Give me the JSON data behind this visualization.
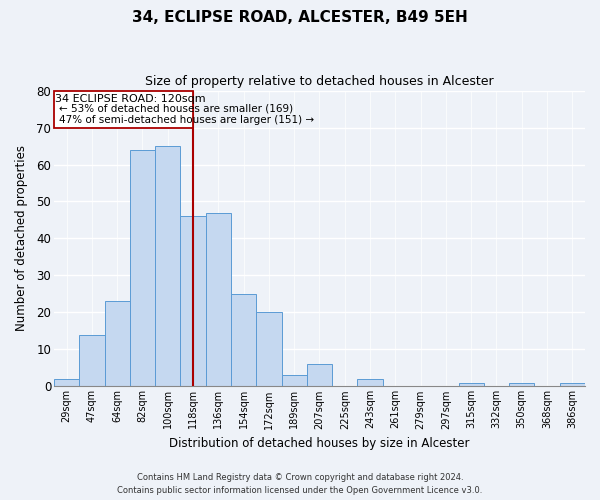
{
  "title": "34, ECLIPSE ROAD, ALCESTER, B49 5EH",
  "subtitle": "Size of property relative to detached houses in Alcester",
  "xlabel": "Distribution of detached houses by size in Alcester",
  "ylabel": "Number of detached properties",
  "bins": [
    "29sqm",
    "47sqm",
    "64sqm",
    "82sqm",
    "100sqm",
    "118sqm",
    "136sqm",
    "154sqm",
    "172sqm",
    "189sqm",
    "207sqm",
    "225sqm",
    "243sqm",
    "261sqm",
    "279sqm",
    "297sqm",
    "315sqm",
    "332sqm",
    "350sqm",
    "368sqm",
    "386sqm"
  ],
  "values": [
    2,
    14,
    23,
    64,
    65,
    46,
    47,
    25,
    20,
    3,
    6,
    0,
    2,
    0,
    0,
    0,
    1,
    0,
    1,
    0,
    1
  ],
  "bar_color": "#c5d8f0",
  "bar_edge_color": "#5b9bd5",
  "vline_color": "#aa0000",
  "ylim": [
    0,
    80
  ],
  "yticks": [
    0,
    10,
    20,
    30,
    40,
    50,
    60,
    70,
    80
  ],
  "annotation_title": "34 ECLIPSE ROAD: 120sqm",
  "annotation_line1": "← 53% of detached houses are smaller (169)",
  "annotation_line2": "47% of semi-detached houses are larger (151) →",
  "footnote1": "Contains HM Land Registry data © Crown copyright and database right 2024.",
  "footnote2": "Contains public sector information licensed under the Open Government Licence v3.0.",
  "background_color": "#eef2f8",
  "grid_color": "#ffffff"
}
